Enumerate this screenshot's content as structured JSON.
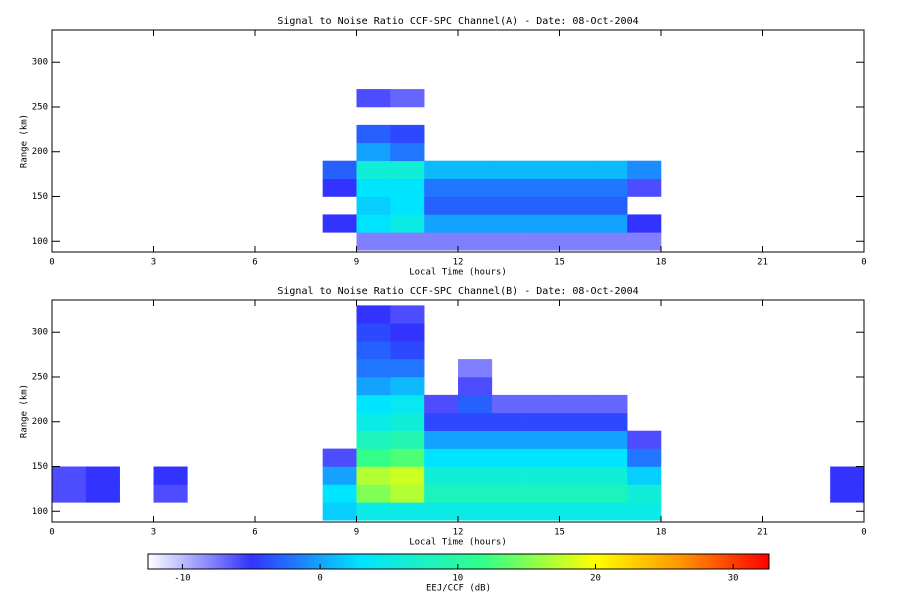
{
  "chart_data": [
    {
      "type": "heatmap",
      "title": "Signal to Noise Ratio CCF-SPC Channel(A) - Date: 08-Oct-2004",
      "x_label": "Local Time (hours)",
      "y_label": "Range (km)",
      "xbins": [
        0,
        1,
        2,
        3,
        4,
        5,
        6,
        7,
        8,
        9,
        10,
        11,
        12,
        13,
        14,
        15,
        16,
        17,
        18,
        19,
        20,
        21,
        22,
        23,
        24
      ],
      "ybins": [
        90,
        110,
        130,
        150,
        170,
        190,
        210,
        230,
        250,
        270,
        290,
        310,
        330
      ],
      "values": [
        [
          null,
          null,
          null,
          null,
          null,
          null,
          null,
          null,
          null,
          -8,
          -8,
          -8,
          -8,
          -8,
          -8,
          -8,
          -8,
          -8,
          null,
          null,
          null,
          null,
          null,
          null
        ],
        [
          null,
          null,
          null,
          null,
          null,
          null,
          null,
          null,
          -5,
          3,
          5,
          0,
          0,
          0,
          0,
          0,
          0,
          -5,
          null,
          null,
          null,
          null,
          null,
          null
        ],
        [
          null,
          null,
          null,
          null,
          null,
          null,
          null,
          null,
          null,
          2,
          3,
          -3,
          -3,
          -3,
          -3,
          -3,
          -3,
          null,
          null,
          null,
          null,
          null,
          null,
          null
        ],
        [
          null,
          null,
          null,
          null,
          null,
          null,
          null,
          null,
          -5,
          3,
          3,
          -2,
          -2,
          -2,
          -2,
          -2,
          -2,
          -6,
          null,
          null,
          null,
          null,
          null,
          null
        ],
        [
          null,
          null,
          null,
          null,
          null,
          null,
          null,
          null,
          -3,
          6,
          6,
          1,
          1,
          1,
          1,
          1,
          1,
          -1,
          null,
          null,
          null,
          null,
          null,
          null
        ],
        [
          null,
          null,
          null,
          null,
          null,
          null,
          null,
          null,
          null,
          0,
          -2,
          null,
          null,
          null,
          null,
          null,
          null,
          null,
          null,
          null,
          null,
          null,
          null,
          null
        ],
        [
          null,
          null,
          null,
          null,
          null,
          null,
          null,
          null,
          null,
          -3,
          -4,
          null,
          null,
          null,
          null,
          null,
          null,
          null,
          null,
          null,
          null,
          null,
          null,
          null
        ],
        [
          null,
          null,
          null,
          null,
          null,
          null,
          null,
          null,
          null,
          null,
          null,
          null,
          null,
          null,
          null,
          null,
          null,
          null,
          null,
          null,
          null,
          null,
          null,
          null
        ],
        [
          null,
          null,
          null,
          null,
          null,
          null,
          null,
          null,
          null,
          -6,
          -7,
          null,
          null,
          null,
          null,
          null,
          null,
          null,
          null,
          null,
          null,
          null,
          null,
          null
        ],
        [
          null,
          null,
          null,
          null,
          null,
          null,
          null,
          null,
          null,
          null,
          null,
          null,
          null,
          null,
          null,
          null,
          null,
          null,
          null,
          null,
          null,
          null,
          null,
          null
        ],
        [
          null,
          null,
          null,
          null,
          null,
          null,
          null,
          null,
          null,
          null,
          null,
          null,
          null,
          null,
          null,
          null,
          null,
          null,
          null,
          null,
          null,
          null,
          null,
          null
        ],
        [
          null,
          null,
          null,
          null,
          null,
          null,
          null,
          null,
          null,
          null,
          null,
          null,
          null,
          null,
          null,
          null,
          null,
          null,
          null,
          null,
          null,
          null,
          null,
          null
        ]
      ],
      "xlim": [
        0,
        24
      ],
      "xticks": [
        0,
        3,
        6,
        9,
        12,
        15,
        18,
        21,
        {
          "value": 24,
          "label": "0"
        }
      ],
      "ylim": [
        88,
        336
      ],
      "yticks": [
        100,
        150,
        200,
        250,
        300
      ]
    },
    {
      "type": "heatmap",
      "title": "Signal to Noise Ratio CCF-SPC Channel(B) - Date: 08-Oct-2004",
      "x_label": "Local Time (hours)",
      "y_label": "Range (km)",
      "xbins": [
        0,
        1,
        2,
        3,
        4,
        5,
        6,
        7,
        8,
        9,
        10,
        11,
        12,
        13,
        14,
        15,
        16,
        17,
        18,
        19,
        20,
        21,
        22,
        23,
        24
      ],
      "ybins": [
        90,
        110,
        130,
        150,
        170,
        190,
        210,
        230,
        250,
        270,
        290,
        310,
        330
      ],
      "values": [
        [
          null,
          null,
          null,
          null,
          null,
          null,
          null,
          null,
          2,
          5,
          5,
          5,
          5,
          5,
          5,
          5,
          5,
          5,
          null,
          null,
          null,
          null,
          null,
          null
        ],
        [
          -6,
          -5,
          null,
          -6,
          null,
          null,
          null,
          null,
          3,
          15,
          17,
          8,
          8,
          8,
          8,
          8,
          8,
          6,
          null,
          null,
          null,
          null,
          null,
          -5
        ],
        [
          -6,
          -5,
          null,
          -5,
          null,
          null,
          null,
          null,
          0,
          17,
          18,
          6,
          6,
          6,
          6,
          6,
          6,
          2,
          null,
          null,
          null,
          null,
          null,
          -5
        ],
        [
          null,
          null,
          null,
          null,
          null,
          null,
          null,
          null,
          -6,
          12,
          13,
          3,
          3,
          3,
          3,
          3,
          3,
          -2,
          null,
          null,
          null,
          null,
          null,
          null
        ],
        [
          null,
          null,
          null,
          null,
          null,
          null,
          null,
          null,
          null,
          8,
          9,
          0,
          0,
          0,
          0,
          0,
          0,
          -6,
          null,
          null,
          null,
          null,
          null,
          null
        ],
        [
          null,
          null,
          null,
          null,
          null,
          null,
          null,
          null,
          null,
          5,
          6,
          -4,
          -4,
          -4,
          -4,
          -4,
          -4,
          null,
          null,
          null,
          null,
          null,
          null,
          null
        ],
        [
          null,
          null,
          null,
          null,
          null,
          null,
          null,
          null,
          null,
          3,
          4,
          -6,
          -3,
          -7,
          -7,
          -7,
          -7,
          null,
          null,
          null,
          null,
          null,
          null,
          null
        ],
        [
          null,
          null,
          null,
          null,
          null,
          null,
          null,
          null,
          null,
          0,
          1,
          null,
          -6,
          null,
          null,
          null,
          null,
          null,
          null,
          null,
          null,
          null,
          null,
          null
        ],
        [
          null,
          null,
          null,
          null,
          null,
          null,
          null,
          null,
          null,
          -2,
          -2,
          null,
          -8,
          null,
          null,
          null,
          null,
          null,
          null,
          null,
          null,
          null,
          null,
          null
        ],
        [
          null,
          null,
          null,
          null,
          null,
          null,
          null,
          null,
          null,
          -3,
          -4,
          null,
          null,
          null,
          null,
          null,
          null,
          null,
          null,
          null,
          null,
          null,
          null,
          null
        ],
        [
          null,
          null,
          null,
          null,
          null,
          null,
          null,
          null,
          null,
          -4,
          -5,
          null,
          null,
          null,
          null,
          null,
          null,
          null,
          null,
          null,
          null,
          null,
          null,
          null
        ],
        [
          null,
          null,
          null,
          null,
          null,
          null,
          null,
          null,
          null,
          -5,
          -6,
          null,
          null,
          null,
          null,
          null,
          null,
          null,
          null,
          null,
          null,
          null,
          null,
          null
        ]
      ],
      "xlim": [
        0,
        24
      ],
      "xticks": [
        0,
        3,
        6,
        9,
        12,
        15,
        18,
        21,
        {
          "value": 24,
          "label": "0"
        }
      ],
      "ylim": [
        88,
        336
      ],
      "yticks": [
        100,
        150,
        200,
        250,
        300
      ]
    },
    {
      "type": "colorbar",
      "x_label": "EEJ/CCF (dB)",
      "xlim": [
        -12.5,
        32.6
      ],
      "xticks": [
        -10,
        0,
        10,
        20,
        30
      ],
      "colorscale": [
        [
          -13,
          "#ffffff"
        ],
        [
          -5,
          "#3333ff"
        ],
        [
          3,
          "#00e5ff"
        ],
        [
          12,
          "#33ff88"
        ],
        [
          20,
          "#ffff00"
        ],
        [
          26,
          "#ff9900"
        ],
        [
          33,
          "#ff0000"
        ]
      ]
    }
  ]
}
